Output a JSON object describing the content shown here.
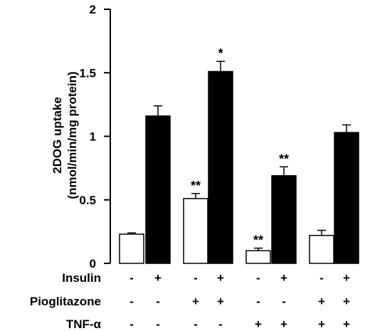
{
  "chart_data": {
    "type": "bar",
    "ylabel_line1": "2DOG uptake",
    "ylabel_line2": "(nmol/min/mg protein)",
    "ylim": [
      0,
      2
    ],
    "yticks": [
      "0",
      "0.5",
      "1",
      "1.5",
      "2"
    ],
    "ytick_values": [
      0,
      0.5,
      1,
      1.5,
      2
    ],
    "bars": [
      {
        "value": 0.23,
        "error": 0.01,
        "fill": "#ffffff",
        "sig": ""
      },
      {
        "value": 1.16,
        "error": 0.08,
        "fill": "#000000",
        "sig": ""
      },
      {
        "value": 0.51,
        "error": 0.04,
        "fill": "#ffffff",
        "sig": "**"
      },
      {
        "value": 1.51,
        "error": 0.08,
        "fill": "#000000",
        "sig": "*"
      },
      {
        "value": 0.1,
        "error": 0.02,
        "fill": "#ffffff",
        "sig": "**"
      },
      {
        "value": 0.69,
        "error": 0.07,
        "fill": "#000000",
        "sig": "**"
      },
      {
        "value": 0.22,
        "error": 0.04,
        "fill": "#ffffff",
        "sig": ""
      },
      {
        "value": 1.03,
        "error": 0.06,
        "fill": "#000000",
        "sig": ""
      }
    ],
    "conditions": [
      {
        "label": "Insulin",
        "signs": [
          "-",
          "+",
          "-",
          "+",
          "-",
          "+",
          "-",
          "+"
        ]
      },
      {
        "label": "Pioglitazone",
        "signs": [
          "-",
          "-",
          "+",
          "+",
          "-",
          "-",
          "+",
          "+"
        ]
      },
      {
        "label": "TNF-α",
        "signs": [
          "-",
          "-",
          "-",
          "-",
          "+",
          "+",
          "+",
          "+"
        ]
      }
    ]
  }
}
